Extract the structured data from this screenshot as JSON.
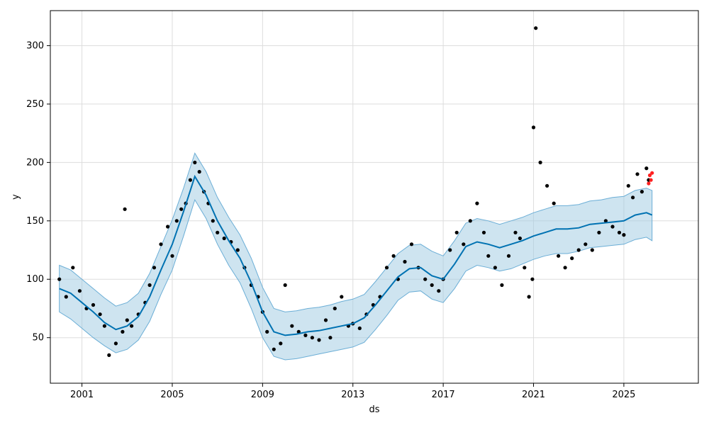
{
  "chart_data": {
    "type": "scatter",
    "title": "",
    "xlabel": "ds",
    "ylabel": "y",
    "xlim": [
      1999.6,
      2028.3
    ],
    "ylim": [
      11,
      330
    ],
    "grid": true,
    "x_ticks": [
      2001,
      2005,
      2009,
      2013,
      2017,
      2021,
      2025
    ],
    "x_tick_labels": [
      "2001",
      "2005",
      "2009",
      "2013",
      "2017",
      "2021",
      "2025"
    ],
    "y_ticks": [
      50,
      100,
      150,
      200,
      250,
      300
    ],
    "y_tick_labels": [
      "50",
      "100",
      "150",
      "200",
      "250",
      "300"
    ],
    "colors": {
      "observed": "#000000",
      "forecast": "#0072B2",
      "interval": "#9ecae1",
      "interval_edge": "#6baed6",
      "future_points": "#ff2020",
      "grid": "#dddddd"
    },
    "forecast": {
      "x": [
        2000.0,
        2000.5,
        2001.0,
        2001.5,
        2002.0,
        2002.5,
        2003.0,
        2003.5,
        2004.0,
        2004.5,
        2005.0,
        2005.5,
        2006.0,
        2006.5,
        2007.0,
        2007.5,
        2008.0,
        2008.5,
        2009.0,
        2009.5,
        2010.0,
        2010.5,
        2011.0,
        2011.5,
        2012.0,
        2012.5,
        2013.0,
        2013.5,
        2014.0,
        2014.5,
        2015.0,
        2015.5,
        2016.0,
        2016.5,
        2017.0,
        2017.5,
        2018.0,
        2018.5,
        2019.0,
        2019.5,
        2020.0,
        2020.5,
        2021.0,
        2021.5,
        2022.0,
        2022.5,
        2023.0,
        2023.5,
        2024.0,
        2024.5,
        2025.0,
        2025.5,
        2026.0,
        2026.25
      ],
      "yhat": [
        92,
        88,
        80,
        72,
        63,
        57,
        60,
        68,
        85,
        108,
        130,
        158,
        188,
        172,
        150,
        133,
        118,
        97,
        72,
        55,
        52,
        53,
        55,
        56,
        58,
        60,
        62,
        67,
        78,
        90,
        102,
        109,
        110,
        103,
        100,
        113,
        128,
        132,
        130,
        127,
        130,
        133,
        137,
        140,
        143,
        143,
        144,
        147,
        148,
        149,
        150,
        155,
        157,
        155
      ],
      "lower": [
        72,
        66,
        58,
        50,
        43,
        37,
        40,
        48,
        64,
        87,
        108,
        137,
        168,
        152,
        130,
        112,
        97,
        75,
        50,
        34,
        31,
        32,
        34,
        36,
        38,
        40,
        42,
        46,
        57,
        69,
        82,
        89,
        90,
        83,
        80,
        92,
        107,
        112,
        110,
        107,
        109,
        113,
        117,
        120,
        122,
        122,
        124,
        127,
        128,
        129,
        130,
        134,
        136,
        133
      ],
      "upper": [
        112,
        108,
        100,
        92,
        84,
        77,
        80,
        88,
        105,
        128,
        151,
        178,
        208,
        192,
        170,
        153,
        138,
        118,
        93,
        75,
        72,
        73,
        75,
        76,
        78,
        81,
        83,
        87,
        98,
        110,
        122,
        129,
        130,
        124,
        120,
        133,
        148,
        152,
        150,
        147,
        150,
        153,
        157,
        160,
        163,
        163,
        164,
        167,
        168,
        170,
        171,
        176,
        178,
        176
      ]
    },
    "observed": {
      "x": [
        2000.0,
        2000.3,
        2000.6,
        2000.9,
        2001.2,
        2001.5,
        2001.8,
        2002.0,
        2002.2,
        2002.5,
        2002.8,
        2002.9,
        2003.0,
        2003.2,
        2003.5,
        2003.8,
        2004.0,
        2004.2,
        2004.5,
        2004.8,
        2005.0,
        2005.2,
        2005.4,
        2005.6,
        2005.8,
        2006.0,
        2006.2,
        2006.4,
        2006.6,
        2006.8,
        2007.0,
        2007.3,
        2007.6,
        2007.9,
        2008.2,
        2008.5,
        2008.8,
        2009.0,
        2009.2,
        2009.5,
        2009.8,
        2010.0,
        2010.3,
        2010.6,
        2010.9,
        2011.2,
        2011.5,
        2011.8,
        2012.0,
        2012.2,
        2012.5,
        2012.8,
        2013.0,
        2013.3,
        2013.6,
        2013.9,
        2014.2,
        2014.5,
        2014.8,
        2015.0,
        2015.3,
        2015.6,
        2015.9,
        2016.2,
        2016.5,
        2016.8,
        2017.0,
        2017.3,
        2017.6,
        2017.9,
        2018.2,
        2018.5,
        2018.8,
        2019.0,
        2019.3,
        2019.6,
        2019.9,
        2020.2,
        2020.4,
        2020.6,
        2020.8,
        2020.95,
        2021.0,
        2021.1,
        2021.3,
        2021.6,
        2021.9,
        2022.1,
        2022.4,
        2022.7,
        2023.0,
        2023.3,
        2023.6,
        2023.9,
        2024.2,
        2024.5,
        2024.8,
        2025.0,
        2025.2,
        2025.4,
        2025.6,
        2025.8,
        2026.0,
        2026.1
      ],
      "y": [
        100,
        85,
        110,
        90,
        75,
        78,
        70,
        60,
        35,
        45,
        55,
        160,
        65,
        60,
        70,
        80,
        95,
        110,
        130,
        145,
        120,
        150,
        160,
        165,
        185,
        200,
        192,
        175,
        165,
        150,
        140,
        135,
        132,
        125,
        110,
        95,
        85,
        72,
        55,
        40,
        45,
        95,
        60,
        55,
        52,
        50,
        48,
        65,
        50,
        75,
        85,
        60,
        62,
        58,
        70,
        78,
        85,
        110,
        120,
        100,
        115,
        130,
        110,
        100,
        95,
        90,
        100,
        125,
        140,
        130,
        150,
        165,
        140,
        120,
        110,
        95,
        120,
        140,
        135,
        110,
        85,
        100,
        230,
        315,
        200,
        180,
        165,
        120,
        110,
        118,
        125,
        130,
        125,
        140,
        150,
        145,
        140,
        138,
        180,
        170,
        190,
        175,
        195,
        185
      ],
      "future_x": [
        2026.1,
        2026.15,
        2026.2,
        2026.25
      ],
      "future_y": [
        182,
        189,
        185,
        191
      ]
    }
  }
}
